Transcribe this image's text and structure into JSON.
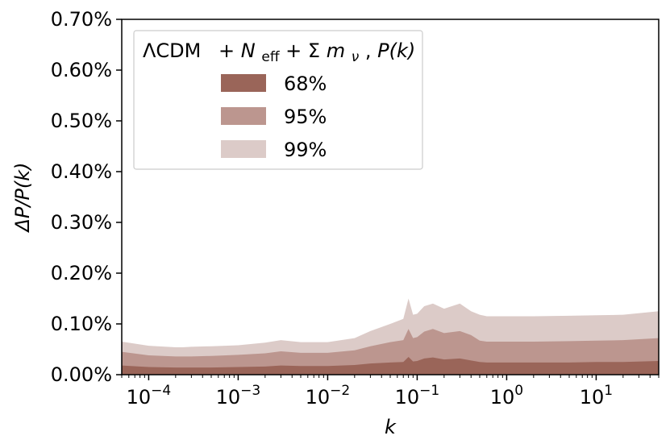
{
  "chart_data": {
    "type": "area",
    "xscale": "log",
    "xlim": [
      5e-05,
      50
    ],
    "ylim": [
      0,
      0.7
    ],
    "xlabel": "k",
    "ylabel": "ΔP/P(k)",
    "yticks": [
      {
        "value": 0.0,
        "label": "0.00%"
      },
      {
        "value": 0.1,
        "label": "0.10%"
      },
      {
        "value": 0.2,
        "label": "0.20%"
      },
      {
        "value": 0.3,
        "label": "0.30%"
      },
      {
        "value": 0.4,
        "label": "0.40%"
      },
      {
        "value": 0.5,
        "label": "0.50%"
      },
      {
        "value": 0.6,
        "label": "0.60%"
      },
      {
        "value": 0.7,
        "label": "0.70%"
      }
    ],
    "xticks": [
      {
        "value": 0.0001,
        "base": "10",
        "exp": "−4"
      },
      {
        "value": 0.001,
        "base": "10",
        "exp": "−3"
      },
      {
        "value": 0.01,
        "base": "10",
        "exp": "−2"
      },
      {
        "value": 0.1,
        "base": "10",
        "exp": "−1"
      },
      {
        "value": 1,
        "base": "10",
        "exp": "0"
      },
      {
        "value": 10,
        "base": "10",
        "exp": "1"
      }
    ],
    "legend": {
      "title": "ΛCDM  + N_eff + Σm_ν, P(k)",
      "title_parts": {
        "model": "ΛCDM",
        "n": "N",
        "n_sub": "eff",
        "sigma": "Σ",
        "m": "m",
        "m_sub": "ν",
        "pk": "P(k)"
      },
      "placement": "upper-left"
    },
    "x": [
      5e-05,
      0.0001,
      0.0002,
      0.00024,
      0.0003,
      0.0005,
      0.001,
      0.002,
      0.003,
      0.005,
      0.01,
      0.02,
      0.03,
      0.05,
      0.07,
      0.08,
      0.09,
      0.1,
      0.12,
      0.15,
      0.2,
      0.3,
      0.4,
      0.5,
      0.6,
      1,
      2,
      5,
      10,
      20,
      50
    ],
    "series": [
      {
        "name": "99%",
        "color": "#dccbc8",
        "values": [
          0.065,
          0.057,
          0.054,
          0.054,
          0.055,
          0.056,
          0.058,
          0.063,
          0.068,
          0.064,
          0.064,
          0.072,
          0.086,
          0.1,
          0.11,
          0.15,
          0.118,
          0.12,
          0.135,
          0.14,
          0.13,
          0.14,
          0.125,
          0.118,
          0.115,
          0.115,
          0.115,
          0.116,
          0.117,
          0.118,
          0.125
        ]
      },
      {
        "name": "95%",
        "color": "#bc968f",
        "values": [
          0.045,
          0.038,
          0.036,
          0.036,
          0.036,
          0.037,
          0.039,
          0.042,
          0.046,
          0.043,
          0.043,
          0.048,
          0.056,
          0.064,
          0.068,
          0.09,
          0.072,
          0.074,
          0.085,
          0.09,
          0.082,
          0.086,
          0.078,
          0.067,
          0.065,
          0.065,
          0.065,
          0.066,
          0.067,
          0.068,
          0.072
        ]
      },
      {
        "name": "68%",
        "color": "#9a6559",
        "values": [
          0.018,
          0.015,
          0.014,
          0.014,
          0.014,
          0.014,
          0.015,
          0.016,
          0.018,
          0.017,
          0.017,
          0.019,
          0.022,
          0.024,
          0.025,
          0.035,
          0.026,
          0.027,
          0.032,
          0.034,
          0.03,
          0.032,
          0.028,
          0.025,
          0.024,
          0.024,
          0.024,
          0.024,
          0.025,
          0.025,
          0.027
        ]
      }
    ],
    "grid": false
  }
}
